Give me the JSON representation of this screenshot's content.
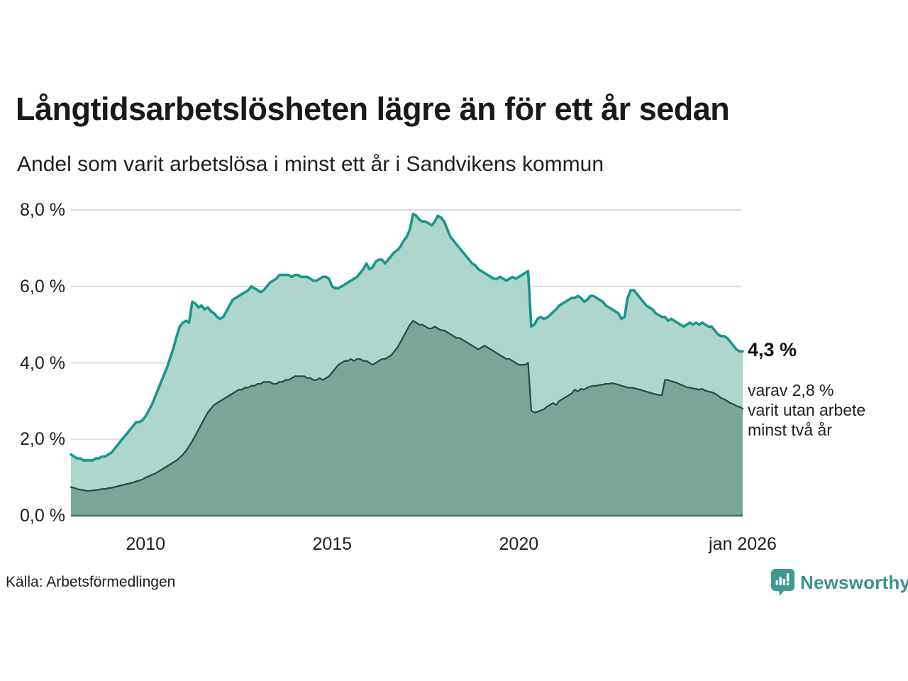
{
  "chart_data": {
    "type": "area",
    "title": "Långtidsarbetslösheten lägre än för ett år sedan",
    "subtitle": "Andel som varit arbetslösa i minst ett år i Sandvikens kommun",
    "unit": "%",
    "interval": "monthly",
    "start_year": 2008,
    "points": 217,
    "ylim": [
      0,
      8
    ],
    "grid": true,
    "y_ticks": [
      {
        "value": 0,
        "label": "0,0 %"
      },
      {
        "value": 2,
        "label": "2,0 %"
      },
      {
        "value": 4,
        "label": "4,0 %"
      },
      {
        "value": 6,
        "label": "6,0 %"
      },
      {
        "value": 8,
        "label": "8,0 %"
      }
    ],
    "x_ticks": [
      {
        "pos": 24,
        "label": "2010"
      },
      {
        "pos": 84,
        "label": "2015"
      },
      {
        "pos": 144,
        "label": "2020"
      },
      {
        "pos": 216,
        "label": "jan 2026"
      }
    ],
    "series": [
      {
        "name": "arbetslösa minst ett år",
        "fill": "#aed6cd",
        "stroke": "#17968b",
        "values": [
          1.6,
          1.55,
          1.5,
          1.5,
          1.45,
          1.45,
          1.45,
          1.45,
          1.5,
          1.5,
          1.55,
          1.55,
          1.6,
          1.65,
          1.75,
          1.85,
          1.95,
          2.05,
          2.15,
          2.25,
          2.35,
          2.45,
          2.45,
          2.5,
          2.6,
          2.75,
          2.9,
          3.1,
          3.3,
          3.5,
          3.7,
          3.9,
          4.15,
          4.4,
          4.7,
          4.95,
          5.05,
          5.1,
          5.05,
          5.6,
          5.55,
          5.45,
          5.5,
          5.4,
          5.45,
          5.35,
          5.3,
          5.2,
          5.15,
          5.2,
          5.35,
          5.5,
          5.65,
          5.7,
          5.75,
          5.8,
          5.85,
          5.9,
          6.0,
          5.95,
          5.9,
          5.85,
          5.9,
          6.0,
          6.1,
          6.15,
          6.2,
          6.3,
          6.3,
          6.3,
          6.3,
          6.25,
          6.3,
          6.3,
          6.25,
          6.25,
          6.25,
          6.2,
          6.15,
          6.15,
          6.2,
          6.25,
          6.25,
          6.2,
          6.0,
          5.95,
          5.95,
          6.0,
          6.05,
          6.1,
          6.15,
          6.2,
          6.25,
          6.35,
          6.45,
          6.6,
          6.45,
          6.5,
          6.65,
          6.7,
          6.7,
          6.6,
          6.7,
          6.8,
          6.9,
          6.95,
          7.05,
          7.2,
          7.3,
          7.5,
          7.9,
          7.85,
          7.75,
          7.7,
          7.7,
          7.65,
          7.6,
          7.7,
          7.85,
          7.8,
          7.7,
          7.5,
          7.3,
          7.2,
          7.1,
          7.0,
          6.9,
          6.8,
          6.7,
          6.6,
          6.55,
          6.45,
          6.4,
          6.35,
          6.3,
          6.25,
          6.2,
          6.2,
          6.25,
          6.2,
          6.15,
          6.2,
          6.25,
          6.2,
          6.25,
          6.3,
          6.35,
          6.4,
          4.95,
          5.0,
          5.15,
          5.2,
          5.15,
          5.18,
          5.25,
          5.33,
          5.4,
          5.5,
          5.55,
          5.6,
          5.65,
          5.7,
          5.7,
          5.75,
          5.7,
          5.6,
          5.65,
          5.75,
          5.75,
          5.7,
          5.65,
          5.6,
          5.5,
          5.45,
          5.4,
          5.35,
          5.3,
          5.15,
          5.2,
          5.7,
          5.9,
          5.9,
          5.8,
          5.7,
          5.6,
          5.5,
          5.45,
          5.4,
          5.3,
          5.25,
          5.2,
          5.2,
          5.1,
          5.15,
          5.1,
          5.05,
          5.0,
          4.95,
          5.0,
          5.05,
          5.0,
          5.05,
          5.0,
          5.05,
          5.0,
          4.95,
          4.95,
          4.85,
          4.75,
          4.7,
          4.7,
          4.65,
          4.55,
          4.45,
          4.35,
          4.3,
          4.3
        ]
      },
      {
        "name": "arbetslösa minst två år",
        "fill": "#7aa69a",
        "stroke": "#2b4c43",
        "values": [
          0.75,
          0.73,
          0.7,
          0.68,
          0.67,
          0.65,
          0.65,
          0.66,
          0.67,
          0.68,
          0.7,
          0.7,
          0.72,
          0.73,
          0.75,
          0.77,
          0.79,
          0.81,
          0.83,
          0.85,
          0.87,
          0.9,
          0.92,
          0.95,
          1.0,
          1.03,
          1.07,
          1.1,
          1.15,
          1.2,
          1.25,
          1.3,
          1.35,
          1.4,
          1.45,
          1.52,
          1.6,
          1.7,
          1.82,
          1.95,
          2.1,
          2.25,
          2.4,
          2.55,
          2.7,
          2.8,
          2.9,
          2.95,
          3.0,
          3.05,
          3.1,
          3.15,
          3.2,
          3.25,
          3.3,
          3.3,
          3.35,
          3.35,
          3.4,
          3.4,
          3.45,
          3.45,
          3.5,
          3.5,
          3.5,
          3.45,
          3.45,
          3.5,
          3.5,
          3.55,
          3.55,
          3.6,
          3.65,
          3.65,
          3.65,
          3.65,
          3.6,
          3.6,
          3.55,
          3.55,
          3.6,
          3.55,
          3.6,
          3.65,
          3.75,
          3.85,
          3.95,
          4.0,
          4.05,
          4.05,
          4.1,
          4.05,
          4.1,
          4.1,
          4.05,
          4.05,
          4.0,
          3.95,
          4.0,
          4.05,
          4.1,
          4.1,
          4.15,
          4.2,
          4.3,
          4.4,
          4.55,
          4.7,
          4.85,
          5.0,
          5.1,
          5.05,
          5.0,
          5.0,
          4.95,
          4.9,
          4.9,
          4.95,
          4.9,
          4.85,
          4.85,
          4.8,
          4.75,
          4.7,
          4.65,
          4.65,
          4.6,
          4.55,
          4.5,
          4.45,
          4.4,
          4.35,
          4.4,
          4.45,
          4.4,
          4.35,
          4.3,
          4.25,
          4.2,
          4.15,
          4.1,
          4.1,
          4.05,
          4.0,
          3.95,
          3.95,
          3.95,
          4.0,
          2.75,
          2.7,
          2.72,
          2.75,
          2.78,
          2.85,
          2.9,
          2.95,
          2.9,
          3.0,
          3.05,
          3.1,
          3.15,
          3.2,
          3.3,
          3.25,
          3.32,
          3.3,
          3.35,
          3.38,
          3.4,
          3.4,
          3.42,
          3.43,
          3.45,
          3.45,
          3.47,
          3.45,
          3.43,
          3.4,
          3.38,
          3.35,
          3.35,
          3.34,
          3.32,
          3.3,
          3.27,
          3.25,
          3.22,
          3.2,
          3.18,
          3.16,
          3.15,
          3.55,
          3.55,
          3.52,
          3.5,
          3.47,
          3.43,
          3.4,
          3.36,
          3.35,
          3.33,
          3.32,
          3.3,
          3.32,
          3.27,
          3.25,
          3.23,
          3.2,
          3.15,
          3.08,
          3.05,
          3.0,
          2.95,
          2.92,
          2.87,
          2.85,
          2.8
        ]
      }
    ],
    "annotations": {
      "end_value_label": "4,3 %",
      "end_note_lines": [
        "varav 2,8 %",
        "varit utan arbete",
        "minst två år"
      ]
    },
    "colors": {
      "gridline": "#dcdcdc",
      "baseline": "#4a6a60",
      "title_text": "#191919",
      "body_text": "#1f1f1f",
      "brand_teal": "#38948a"
    }
  },
  "footer": {
    "source": "Källa: Arbetsförmedlingen",
    "brand": "Newsworthy"
  }
}
